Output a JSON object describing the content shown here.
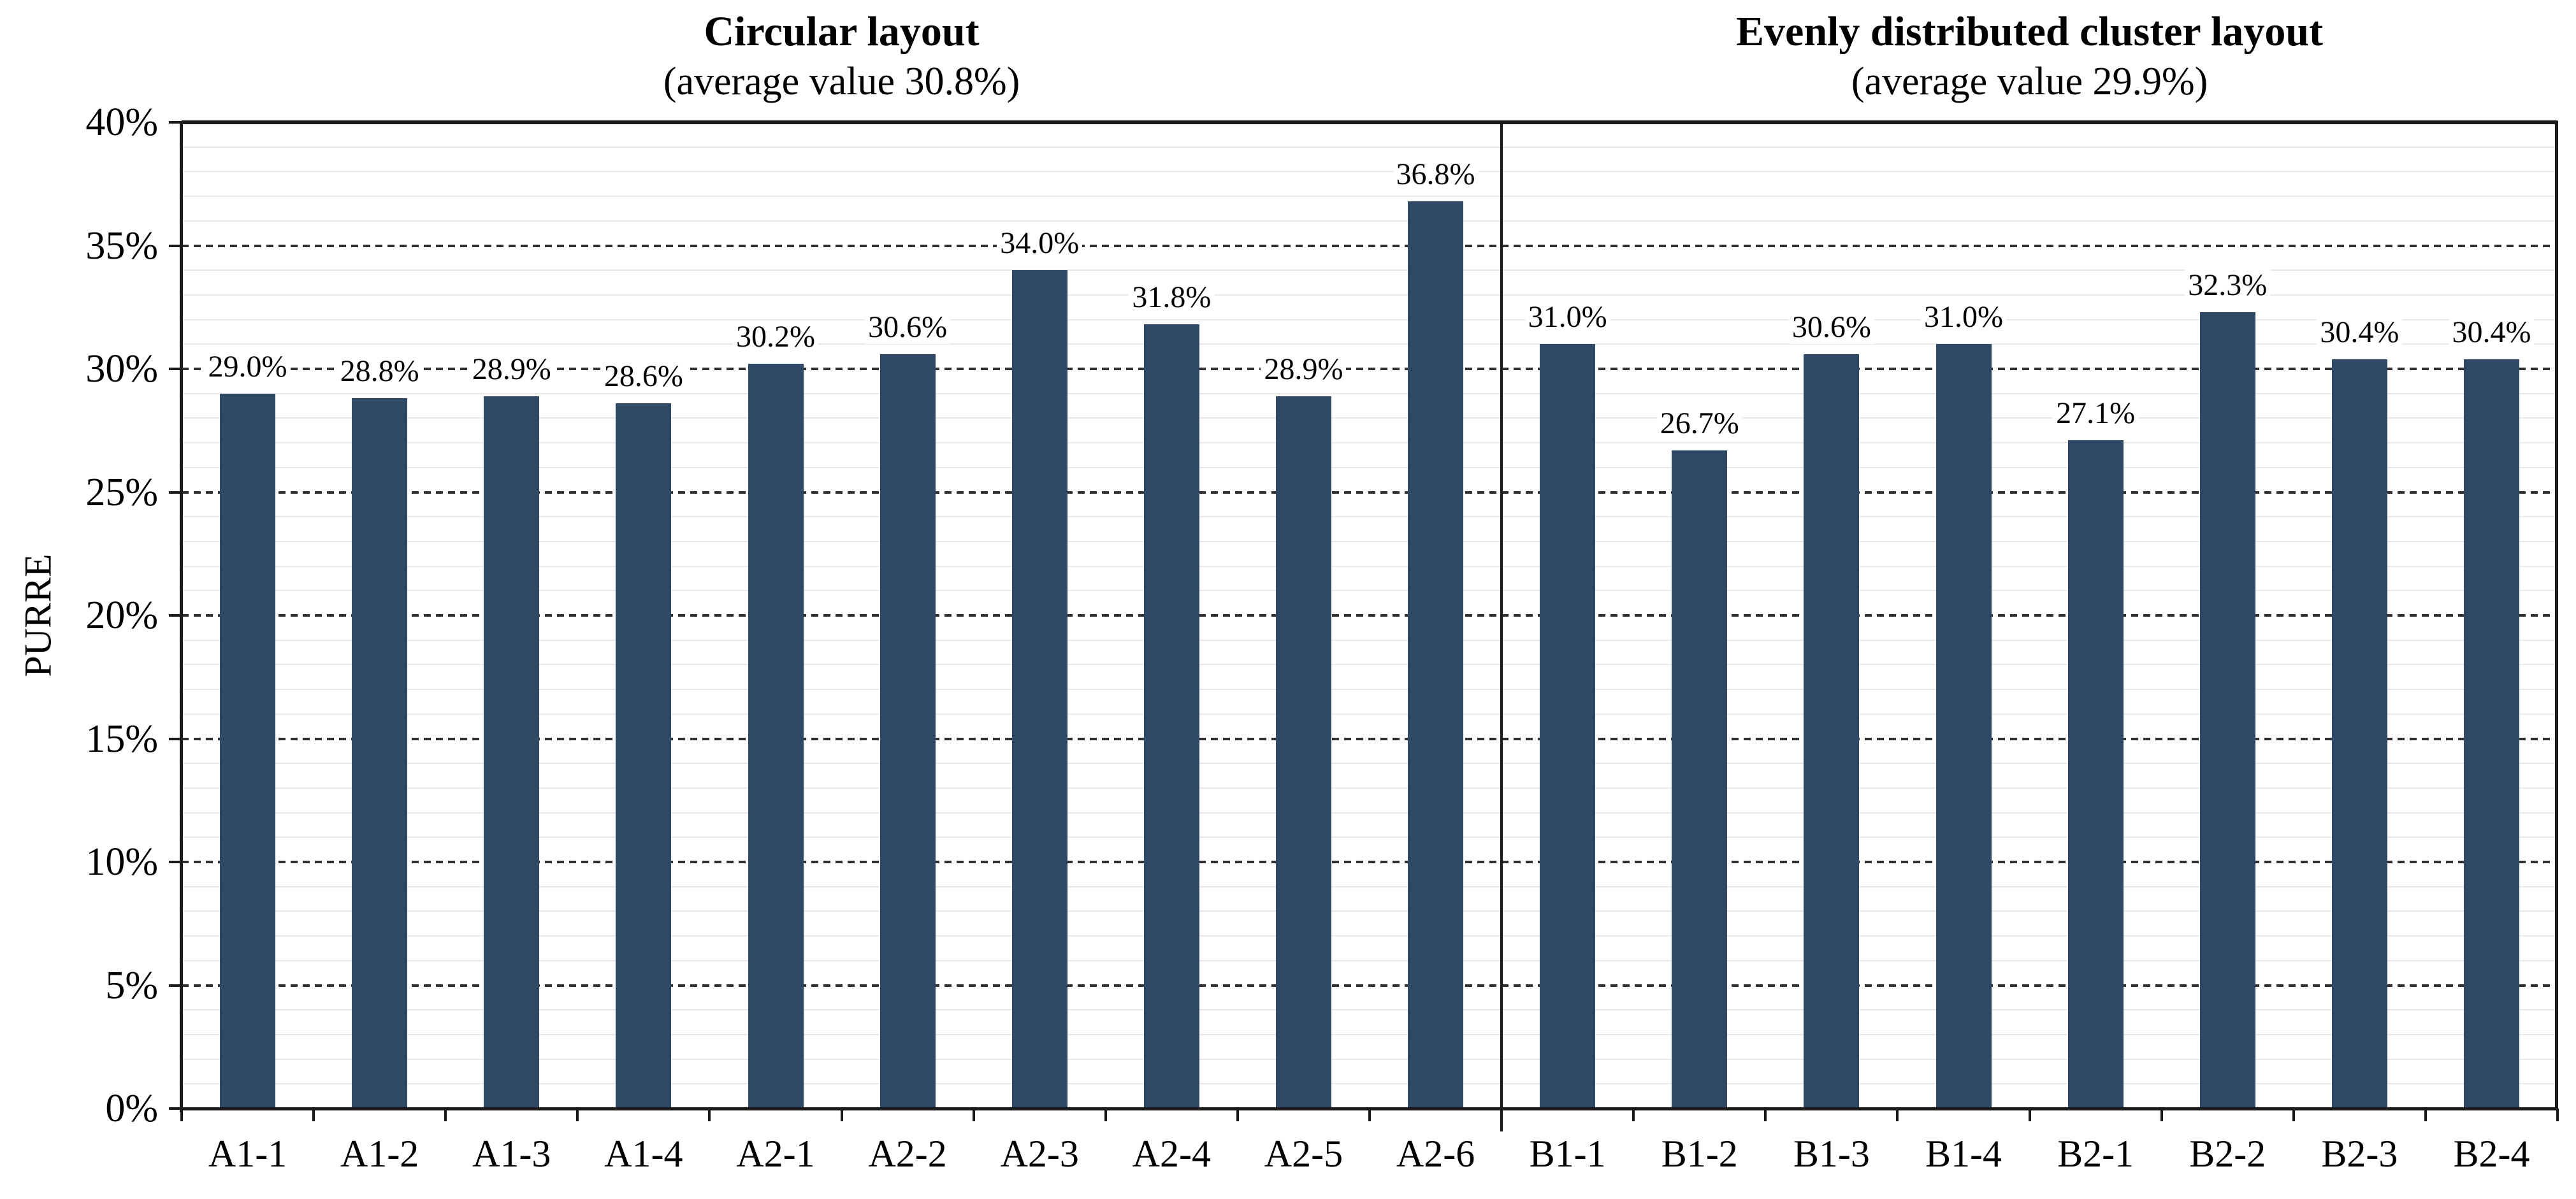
{
  "chart_data": {
    "type": "bar",
    "ylabel": "PURRE",
    "ylim": [
      0,
      40
    ],
    "y_major_step": 5,
    "y_minor_step": 1,
    "y_tick_labels": [
      "0%",
      "5%",
      "10%",
      "15%",
      "20%",
      "25%",
      "30%",
      "35%",
      "40%"
    ],
    "grid": {
      "major": "dashed-dark",
      "minor": "solid-light"
    },
    "legend": "none",
    "bar_color": "#2E4866",
    "panels": [
      {
        "title": "Circular layout",
        "subtitle": "(average value 30.8%)",
        "categories": [
          "A1-1",
          "A1-2",
          "A1-3",
          "A1-4",
          "A2-1",
          "A2-2",
          "A2-3",
          "A2-4",
          "A2-5",
          "A2-6"
        ],
        "values": [
          29.0,
          28.8,
          28.9,
          28.6,
          30.2,
          30.6,
          34.0,
          31.8,
          28.9,
          36.8
        ],
        "labels": [
          "29.0%",
          "28.8%",
          "28.9%",
          "28.6%",
          "30.2%",
          "30.6%",
          "34.0%",
          "31.8%",
          "28.9%",
          "36.8%"
        ]
      },
      {
        "title": "Evenly distributed cluster layout",
        "subtitle": "(average value 29.9%)",
        "categories": [
          "B1-1",
          "B1-2",
          "B1-3",
          "B1-4",
          "B2-1",
          "B2-2",
          "B2-3",
          "B2-4"
        ],
        "values": [
          31.0,
          26.7,
          30.6,
          31.0,
          27.1,
          32.3,
          30.4,
          30.4
        ],
        "labels": [
          "31.0%",
          "26.7%",
          "30.6%",
          "31.0%",
          "27.1%",
          "32.3%",
          "30.4%",
          "30.4%"
        ]
      }
    ]
  }
}
